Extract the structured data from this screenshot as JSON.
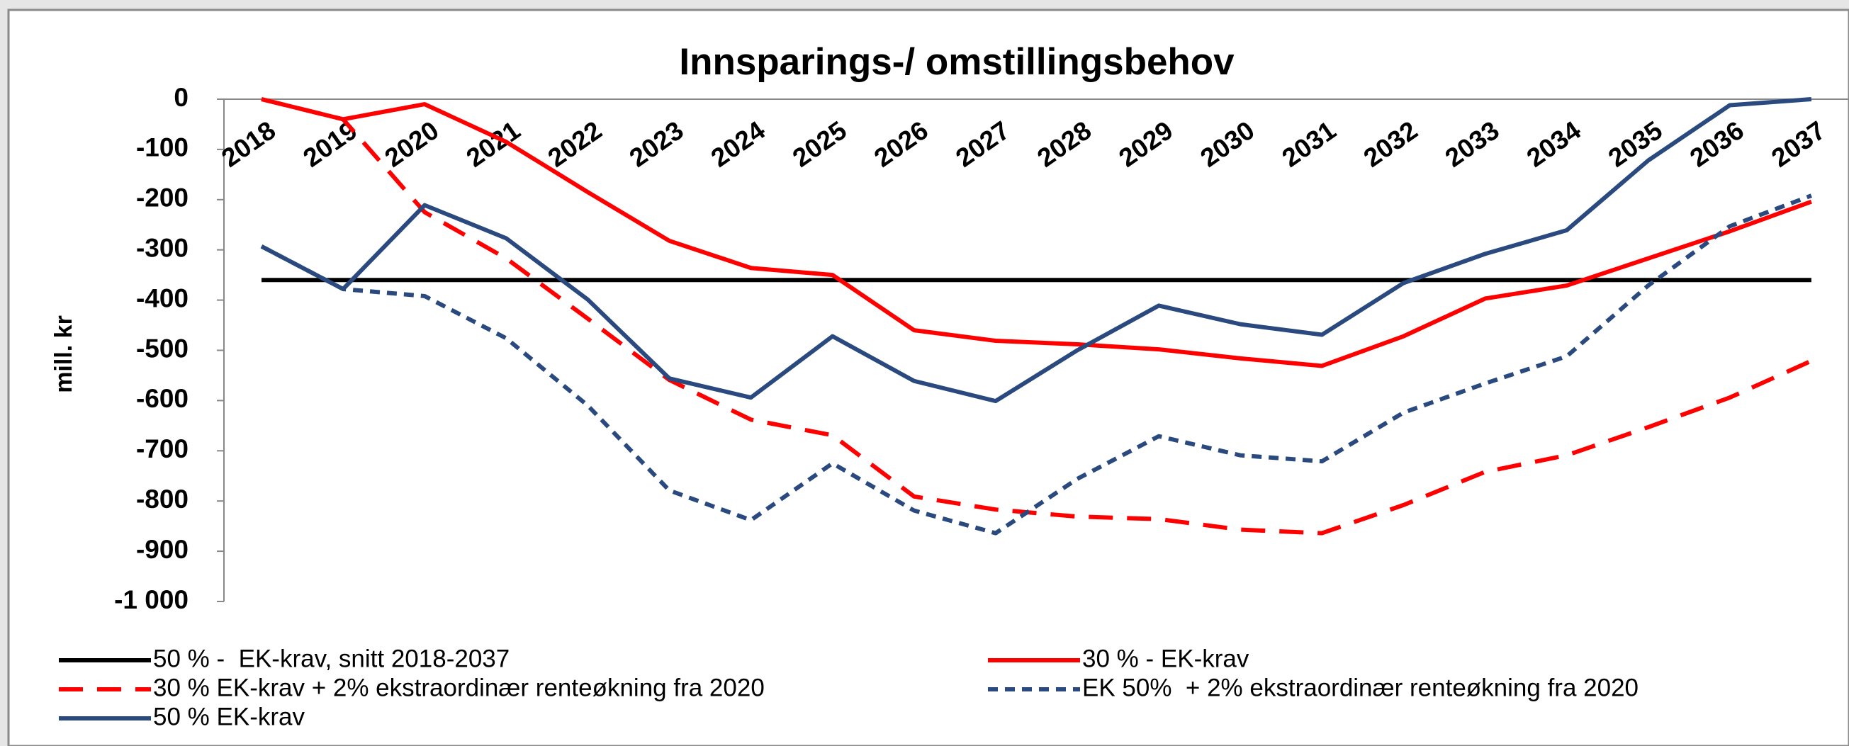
{
  "chart_data": {
    "type": "line",
    "title": "Innsparings-/ omstillingsbehov",
    "y_label": "mill. kr",
    "categories": [
      "2018",
      "2019",
      "2020",
      "2021",
      "2022",
      "2023",
      "2024",
      "2025",
      "2026",
      "2027",
      "2028",
      "2029",
      "2030",
      "2031",
      "2032",
      "2033",
      "2034",
      "2035",
      "2036",
      "2037"
    ],
    "ylim": [
      -1000,
      0
    ],
    "yticks": [
      0,
      -100,
      -200,
      -300,
      -400,
      -500,
      -600,
      -700,
      -800,
      -900,
      {
        "value": -1000,
        "label": "-1 000"
      }
    ],
    "grid": false,
    "series": [
      {
        "name": "50 % -  EK-krav, snitt 2018-2037",
        "color": "#000000",
        "line_style": "solid",
        "values": [
          -360,
          -360,
          -360,
          -360,
          -360,
          -360,
          -360,
          -360,
          -360,
          -360,
          -360,
          -360,
          -360,
          -360,
          -360,
          -360,
          -360,
          -360,
          -360,
          -360
        ]
      },
      {
        "name": "30 % - EK-krav",
        "color": "#ff0000",
        "line_style": "solid",
        "values": [
          0,
          -40,
          -10,
          -85,
          -185,
          -282,
          -336,
          -350,
          -460,
          -481,
          -488,
          -498,
          -516,
          -531,
          -472,
          -397,
          -371,
          -317,
          -263,
          -204
        ]
      },
      {
        "name": "30 % EK-krav + 2% ekstraordinær renteøkning fra 2020",
        "color": "#ff0000",
        "line_style": "long-dash",
        "values": [
          0,
          -40,
          -225,
          -317,
          -437,
          -559,
          -638,
          -669,
          -791,
          -817,
          -831,
          -836,
          -857,
          -864,
          -808,
          -742,
          -709,
          -653,
          -594,
          -521
        ]
      },
      {
        "name": "EK 50%  + 2% ekstraordinær renteøkning fra 2020",
        "color": "#2a4a7f",
        "line_style": "short-dash",
        "values": [
          -293,
          -378,
          -392,
          -476,
          -610,
          -779,
          -838,
          -725,
          -819,
          -864,
          -756,
          -671,
          -709,
          -721,
          -624,
          -566,
          -512,
          -371,
          -253,
          -192
        ]
      },
      {
        "name": "50 % EK-krav",
        "color": "#2a4a7f",
        "line_style": "solid",
        "values": [
          -293,
          -378,
          -211,
          -277,
          -399,
          -556,
          -594,
          -472,
          -561,
          -601,
          -500,
          -411,
          -448,
          -469,
          -366,
          -308,
          -261,
          -122,
          -12,
          0
        ]
      }
    ]
  }
}
